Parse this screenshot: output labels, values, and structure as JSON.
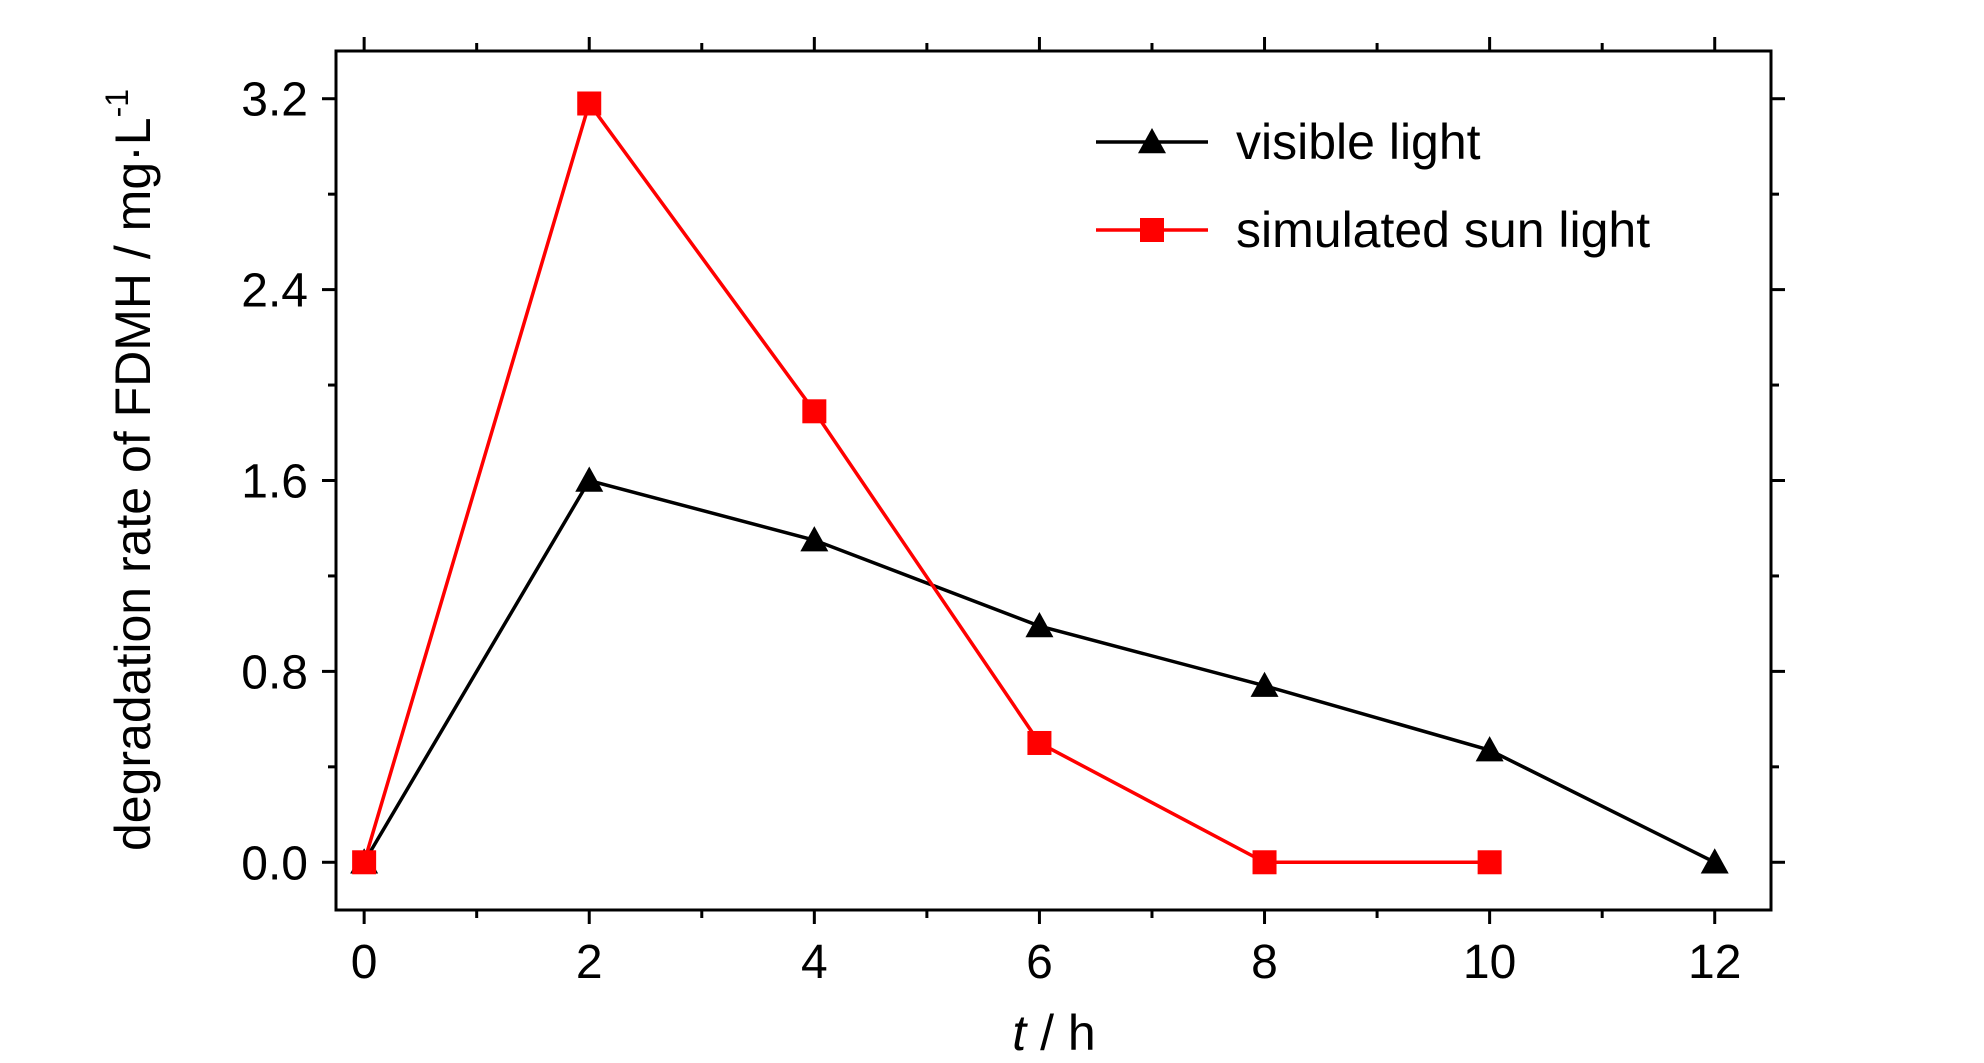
{
  "chart_data": {
    "type": "line",
    "xlabel": {
      "italic": "t",
      "rest": " / h"
    },
    "ylabel": {
      "text": "degradation rate of FDMH / mg·L",
      "superscript": "-1"
    },
    "xlim": [
      -0.25,
      12.5
    ],
    "ylim": [
      -0.2,
      3.4
    ],
    "x_ticks": [
      0,
      2,
      4,
      6,
      8,
      10,
      12
    ],
    "x_tick_labels": [
      "0",
      "2",
      "4",
      "6",
      "8",
      "10",
      "12"
    ],
    "x_minor_ticks": [
      1,
      3,
      5,
      7,
      9,
      11
    ],
    "y_ticks": [
      0.0,
      0.8,
      1.6,
      2.4,
      3.2
    ],
    "y_tick_labels": [
      "0.0",
      "0.8",
      "1.6",
      "2.4",
      "3.2"
    ],
    "y_minor_ticks": [
      0.4,
      1.2,
      2.0,
      2.8
    ],
    "grid": false,
    "legend_position": "top-right",
    "series": [
      {
        "name": "visible light",
        "color": "#000000",
        "marker": "triangle",
        "x": [
          0,
          2,
          4,
          6,
          8,
          10,
          12
        ],
        "values": [
          0.0,
          1.6,
          1.35,
          0.99,
          0.74,
          0.47,
          0.0
        ]
      },
      {
        "name": "simulated sun light",
        "color": "#ff0000",
        "marker": "square",
        "x": [
          0,
          2,
          4,
          6,
          8,
          10
        ],
        "values": [
          0.0,
          3.18,
          1.89,
          0.5,
          0.0,
          0.0
        ]
      }
    ]
  }
}
